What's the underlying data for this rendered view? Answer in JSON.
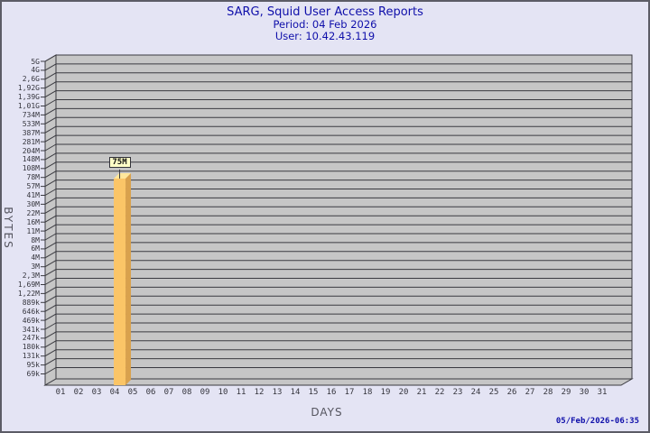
{
  "header": {
    "title": "SARG, Squid User Access Reports",
    "period_line": "Period: 04 Feb 2026",
    "user_line": "User: 10.42.43.119"
  },
  "footer": {
    "timestamp": "05/Feb/2026-06:35"
  },
  "colors": {
    "page_background": "#e4e4f4",
    "frame_border": "#5c5c66",
    "title_text": "#0f0faa",
    "plot_face": "#c6c6c6",
    "grid_line": "#3a3a40",
    "bar_front": "#fbc567",
    "bar_top": "#ffe79c",
    "bar_side": "#d9a14d",
    "bar_tag_background": "#ffffc8",
    "tick_text": "#35353d",
    "axis_title_text": "#55555f"
  },
  "chart_data": {
    "type": "bar",
    "title": "SARG, Squid User Access Reports",
    "subtitle": "Period: 04 Feb 2026 — User: 10.42.43.119",
    "xlabel": "DAYS",
    "ylabel": "BYTES",
    "y_scale": "log",
    "grid": "horizontal",
    "x_tick_labels": [
      "01",
      "02",
      "03",
      "04",
      "05",
      "06",
      "07",
      "08",
      "09",
      "10",
      "11",
      "12",
      "13",
      "14",
      "15",
      "16",
      "17",
      "18",
      "19",
      "20",
      "21",
      "22",
      "23",
      "24",
      "25",
      "26",
      "27",
      "28",
      "29",
      "30",
      "31"
    ],
    "y_tick_labels": [
      "5G",
      "4G",
      "2,6G",
      "1,92G",
      "1,39G",
      "1,01G",
      "734M",
      "533M",
      "387M",
      "281M",
      "204M",
      "148M",
      "108M",
      "78M",
      "57M",
      "41M",
      "30M",
      "22M",
      "16M",
      "11M",
      "8M",
      "6M",
      "4M",
      "3M",
      "2,3M",
      "1,69M",
      "1,22M",
      "889k",
      "646k",
      "469k",
      "341k",
      "247k",
      "180k",
      "131k",
      "95k",
      "69k"
    ],
    "bars": [
      {
        "day": 4,
        "value_label": "75M",
        "value_bytes": 75000000
      }
    ]
  }
}
